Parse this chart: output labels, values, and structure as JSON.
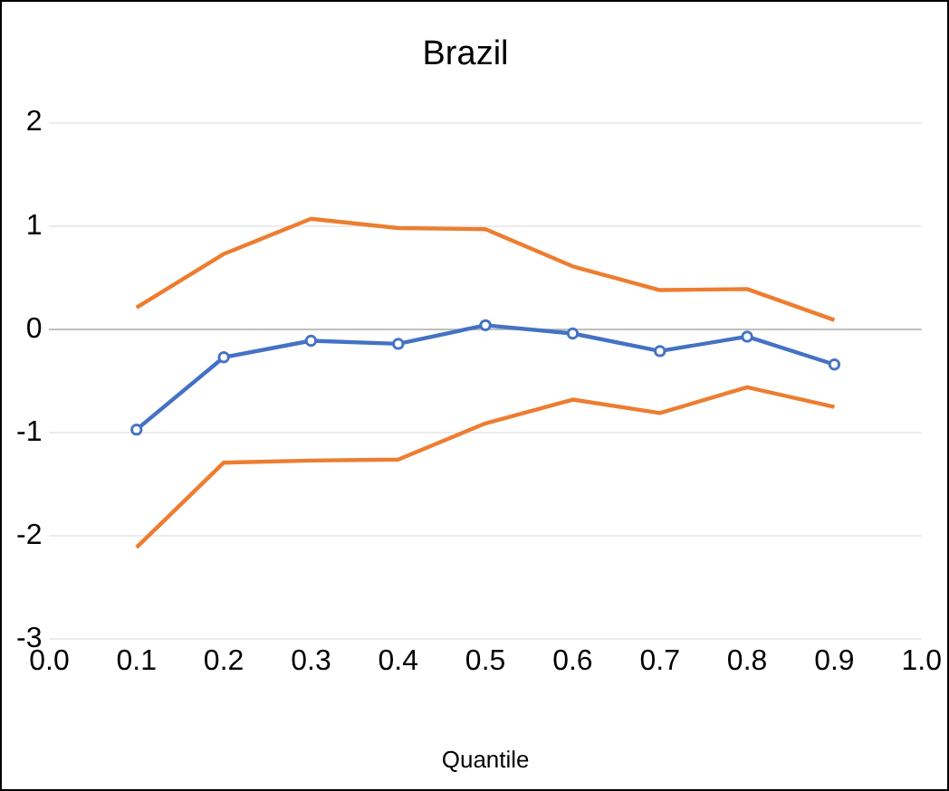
{
  "chart_data": {
    "type": "line",
    "title": "Brazil",
    "xlabel": "Quantile",
    "x": [
      0.1,
      0.2,
      0.3,
      0.4,
      0.5,
      0.6,
      0.7,
      0.8,
      0.9
    ],
    "series": [
      {
        "color": "#4472c4",
        "marker": "circle",
        "values": [
          -0.97,
          -0.27,
          -0.11,
          -0.14,
          0.04,
          -0.04,
          -0.21,
          -0.07,
          -0.34
        ]
      },
      {
        "color": "#ed7d31",
        "marker": "none",
        "values": [
          0.21,
          0.73,
          1.07,
          0.98,
          0.97,
          0.61,
          0.38,
          0.39,
          0.09
        ]
      },
      {
        "color": "#ed7d31",
        "marker": "none",
        "values": [
          -2.11,
          -1.29,
          -1.27,
          -1.26,
          -0.91,
          -0.68,
          -0.81,
          -0.56,
          -0.75
        ]
      }
    ],
    "xlim": [
      0,
      1
    ],
    "xticks": [
      {
        "value": 0,
        "label": "0.0"
      },
      0.1,
      0.2,
      0.3,
      0.4,
      0.5,
      0.6,
      0.7,
      0.8,
      0.9,
      {
        "value": 1,
        "label": "1.0"
      }
    ],
    "ylim": [
      -3,
      2
    ],
    "yticks": [
      -3,
      -2,
      -1,
      0,
      1,
      2
    ],
    "grid": "y",
    "legend": false,
    "line_style": "solid"
  }
}
